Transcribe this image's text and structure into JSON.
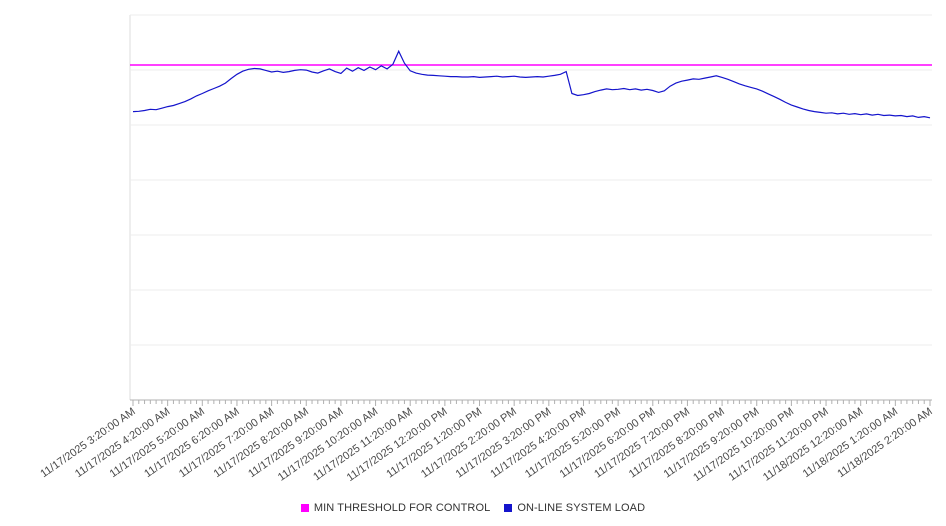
{
  "legend": {
    "items": [
      {
        "label": "MIN THRESHOLD FOR CONTROL",
        "color": "#ff00ff"
      },
      {
        "label": "ON-LINE SYSTEM LOAD",
        "color": "#1414cc"
      }
    ]
  },
  "chart_data": {
    "type": "line",
    "title": "",
    "xlabel": "",
    "ylabel": "",
    "grid": "horizontal",
    "legend_position": "bottom-center",
    "x_tick_labels": [
      "11/17/2025 3:20:00 AM",
      "11/17/2025 4:20:00 AM",
      "11/17/2025 5:20:00 AM",
      "11/17/2025 6:20:00 AM",
      "11/17/2025 7:20:00 AM",
      "11/17/2025 8:20:00 AM",
      "11/17/2025 9:20:00 AM",
      "11/17/2025 10:20:00 AM",
      "11/17/2025 11:20:00 AM",
      "11/17/2025 12:20:00 PM",
      "11/17/2025 1:20:00 PM",
      "11/17/2025 2:20:00 PM",
      "11/17/2025 3:20:00 PM",
      "11/17/2025 4:20:00 PM",
      "11/17/2025 5:20:00 PM",
      "11/17/2025 6:20:00 PM",
      "11/17/2025 7:20:00 PM",
      "11/17/2025 8:20:00 PM",
      "11/17/2025 9:20:00 PM",
      "11/17/2025 10:20:00 PM",
      "11/17/2025 11:20:00 PM",
      "11/18/2025 12:20:00 AM",
      "11/18/2025 1:20:00 AM",
      "11/18/2025 2:20:00 AM"
    ],
    "minutes_per_point": 10,
    "ticks_per_label": 6,
    "y_axis": {
      "labels_visible": false,
      "ylim": [
        0,
        100
      ],
      "divisions": 7
    },
    "series": [
      {
        "name": "MIN THRESHOLD FOR CONTROL",
        "type": "threshold",
        "value": 87.0,
        "color": "#ff00ff"
      },
      {
        "name": "ON-LINE SYSTEM LOAD",
        "type": "line",
        "color": "#1414cc",
        "values": [
          74.9,
          75.0,
          75.2,
          75.5,
          75.4,
          75.8,
          76.2,
          76.5,
          77.0,
          77.5,
          78.2,
          79.0,
          79.6,
          80.3,
          80.9,
          81.5,
          82.3,
          83.5,
          84.6,
          85.4,
          85.9,
          86.1,
          86.0,
          85.6,
          85.2,
          85.4,
          85.1,
          85.3,
          85.6,
          85.8,
          85.7,
          85.2,
          84.9,
          85.5,
          86.0,
          85.3,
          84.8,
          86.2,
          85.4,
          86.3,
          85.6,
          86.5,
          85.8,
          86.8,
          86.0,
          87.2,
          90.6,
          87.5,
          85.5,
          84.9,
          84.6,
          84.4,
          84.3,
          84.2,
          84.1,
          84.0,
          84.0,
          83.9,
          83.9,
          84.0,
          83.8,
          83.9,
          84.0,
          84.1,
          83.9,
          84.0,
          84.1,
          83.9,
          83.8,
          83.9,
          84.0,
          83.9,
          84.1,
          84.3,
          84.6,
          85.3,
          79.6,
          79.1,
          79.3,
          79.6,
          80.1,
          80.5,
          80.8,
          80.6,
          80.7,
          80.9,
          80.6,
          80.8,
          80.5,
          80.7,
          80.4,
          79.9,
          80.3,
          81.5,
          82.3,
          82.8,
          83.1,
          83.4,
          83.3,
          83.6,
          83.9,
          84.2,
          83.8,
          83.3,
          82.7,
          82.1,
          81.6,
          81.2,
          80.8,
          80.2,
          79.5,
          78.8,
          78.1,
          77.3,
          76.6,
          76.1,
          75.6,
          75.2,
          74.9,
          74.7,
          74.5,
          74.6,
          74.3,
          74.5,
          74.2,
          74.4,
          74.1,
          74.3,
          74.0,
          74.2,
          73.9,
          74.0,
          73.8,
          73.9,
          73.6,
          73.8,
          73.4,
          73.6,
          73.3
        ]
      }
    ]
  }
}
